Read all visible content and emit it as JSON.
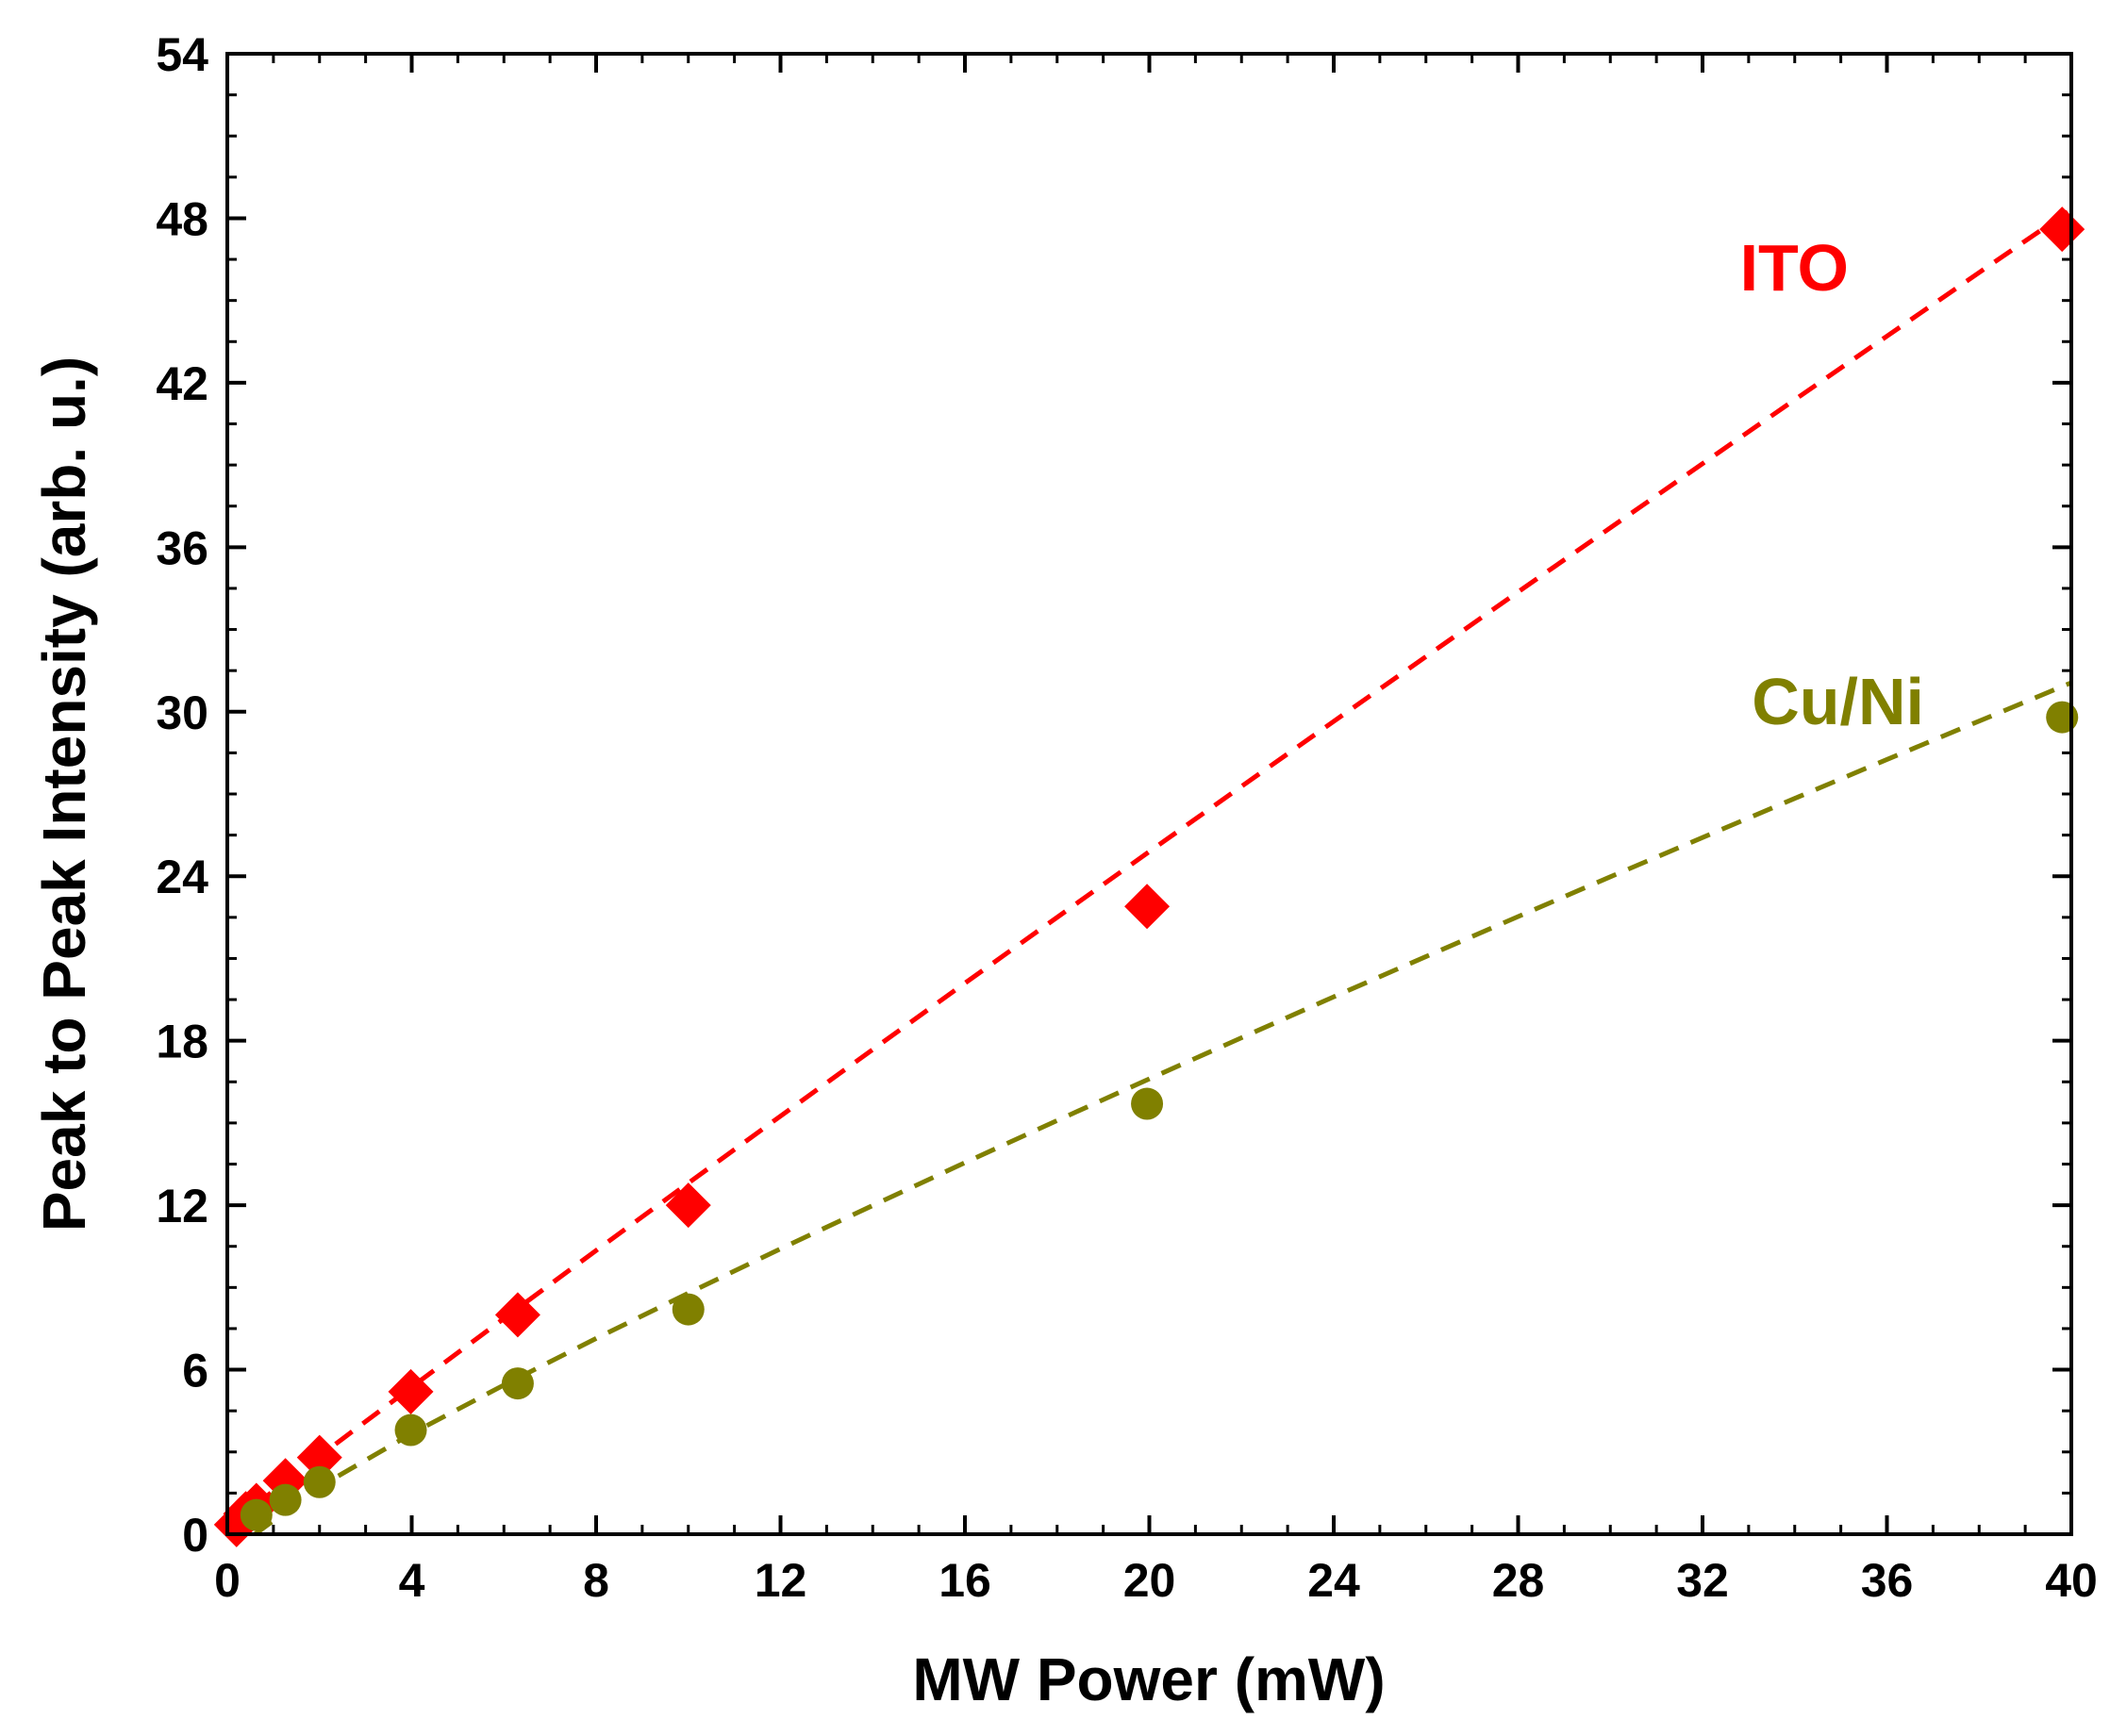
{
  "chart_data": {
    "type": "scatter",
    "title": "",
    "xlabel": "MW Power (mW)",
    "ylabel": "Peak to Peak Intensity (arb. u.)",
    "xlim": [
      0,
      40
    ],
    "ylim": [
      0,
      54
    ],
    "xticks": [
      0,
      4,
      8,
      12,
      16,
      20,
      24,
      28,
      32,
      36,
      40
    ],
    "yticks": [
      0,
      6,
      12,
      18,
      24,
      30,
      36,
      42,
      48,
      54
    ],
    "x_minor_step": 1,
    "y_minor_step": 1.5,
    "grid": false,
    "legend": "none",
    "series": [
      {
        "name": "ITO",
        "marker": "diamond",
        "color": "#ff0000",
        "x": [
          0.2,
          0.4,
          0.63,
          1.26,
          2.0,
          3.98,
          6.3,
          10.0,
          19.95,
          39.8
        ],
        "y": [
          0.35,
          0.75,
          1.05,
          1.95,
          2.8,
          5.2,
          8.0,
          12.0,
          22.9,
          47.6
        ],
        "fit": {
          "style": "dashed",
          "x": [
            0,
            2,
            4,
            6,
            8,
            10,
            12,
            14,
            16,
            18,
            20,
            22,
            24,
            26,
            28,
            30,
            32,
            34,
            36,
            38,
            40
          ],
          "y": [
            0.3,
            2.85,
            5.37,
            7.87,
            10.35,
            12.81,
            15.25,
            17.68,
            20.1,
            22.5,
            24.9,
            27.28,
            29.65,
            32.01,
            34.37,
            36.71,
            39.05,
            41.38,
            43.7,
            46.02,
            48.32
          ]
        }
      },
      {
        "name": "Cu/Ni",
        "marker": "circle",
        "color": "#808000",
        "x": [
          0.63,
          1.26,
          2.0,
          3.98,
          6.3,
          10.0,
          19.95,
          39.8
        ],
        "y": [
          0.7,
          1.25,
          1.9,
          3.8,
          5.5,
          8.2,
          15.7,
          29.8
        ],
        "fit": {
          "style": "dashed",
          "x": [
            0.6,
            2,
            4,
            6,
            8,
            10,
            12,
            14,
            16,
            18,
            20,
            22,
            24,
            26,
            28,
            30,
            32,
            34,
            36,
            38,
            40
          ],
          "y": [
            0.0,
            1.73,
            3.67,
            5.44,
            7.14,
            8.79,
            10.41,
            11.99,
            13.55,
            15.09,
            16.61,
            18.11,
            19.6,
            21.07,
            22.53,
            23.98,
            25.41,
            26.84,
            28.26,
            29.66,
            31.06
          ]
        }
      }
    ]
  }
}
